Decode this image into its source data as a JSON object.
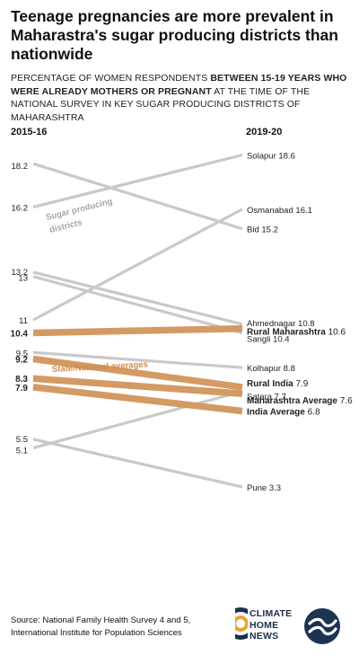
{
  "title": "Teenage pregnancies are more prevalent in Maharastra's sugar producing districts than nationwide",
  "subtitle_parts": [
    {
      "text": "Percentage of women respondents ",
      "bold": false
    },
    {
      "text": "between 15-19 years who were already mothers or pregnant",
      "bold": true
    },
    {
      "text": " at the time of the National Survey in key sugar producing districts of Maharashtra",
      "bold": false
    }
  ],
  "column_left": "2015-16",
  "column_right": "2019-20",
  "annotations": {
    "sugar_line1": "Sugar producing",
    "sugar_line2": "districts",
    "averages": "State/National averages"
  },
  "chart_data": {
    "type": "slope",
    "x": [
      "2015-16",
      "2019-20"
    ],
    "ylim": [
      3,
      19
    ],
    "series": [
      {
        "name": "Solapur",
        "values": [
          16.2,
          18.6
        ],
        "group": "district"
      },
      {
        "name": "Osmanabad",
        "values": [
          11,
          16.1
        ],
        "group": "district"
      },
      {
        "name": "Bid",
        "values": [
          18.2,
          15.2
        ],
        "group": "district"
      },
      {
        "name": "Ahmednagar",
        "values": [
          13.2,
          10.8
        ],
        "group": "district"
      },
      {
        "name": "Sangli",
        "values": [
          13,
          10.4
        ],
        "group": "district"
      },
      {
        "name": "Kolhapur",
        "values": [
          9.5,
          8.8
        ],
        "group": "district"
      },
      {
        "name": "Satara",
        "values": [
          5.1,
          7.7
        ],
        "group": "district"
      },
      {
        "name": "Pune",
        "values": [
          5.5,
          3.3
        ],
        "group": "district"
      },
      {
        "name": "Rural Maharashtra",
        "values": [
          10.4,
          10.6
        ],
        "group": "average"
      },
      {
        "name": "Rural India",
        "values": [
          9.2,
          7.9
        ],
        "group": "average"
      },
      {
        "name": "Maharashtra Average",
        "values": [
          8.3,
          7.6
        ],
        "group": "average"
      },
      {
        "name": "India Average",
        "values": [
          7.9,
          6.8
        ],
        "group": "average"
      }
    ]
  },
  "colors": {
    "district": "#c9c9c9",
    "average": "#d49a63",
    "text": "#111111"
  },
  "source": "Source: National Family Health Survey 4 and 5, International Institute for Population Sciences",
  "logo_chn": {
    "line1": "CLIMATE",
    "line2": "HOME",
    "line3": "NEWS"
  },
  "icons": {
    "chn_logo": "climate-home-news-logo",
    "second_logo": "circular-wave-logo"
  }
}
